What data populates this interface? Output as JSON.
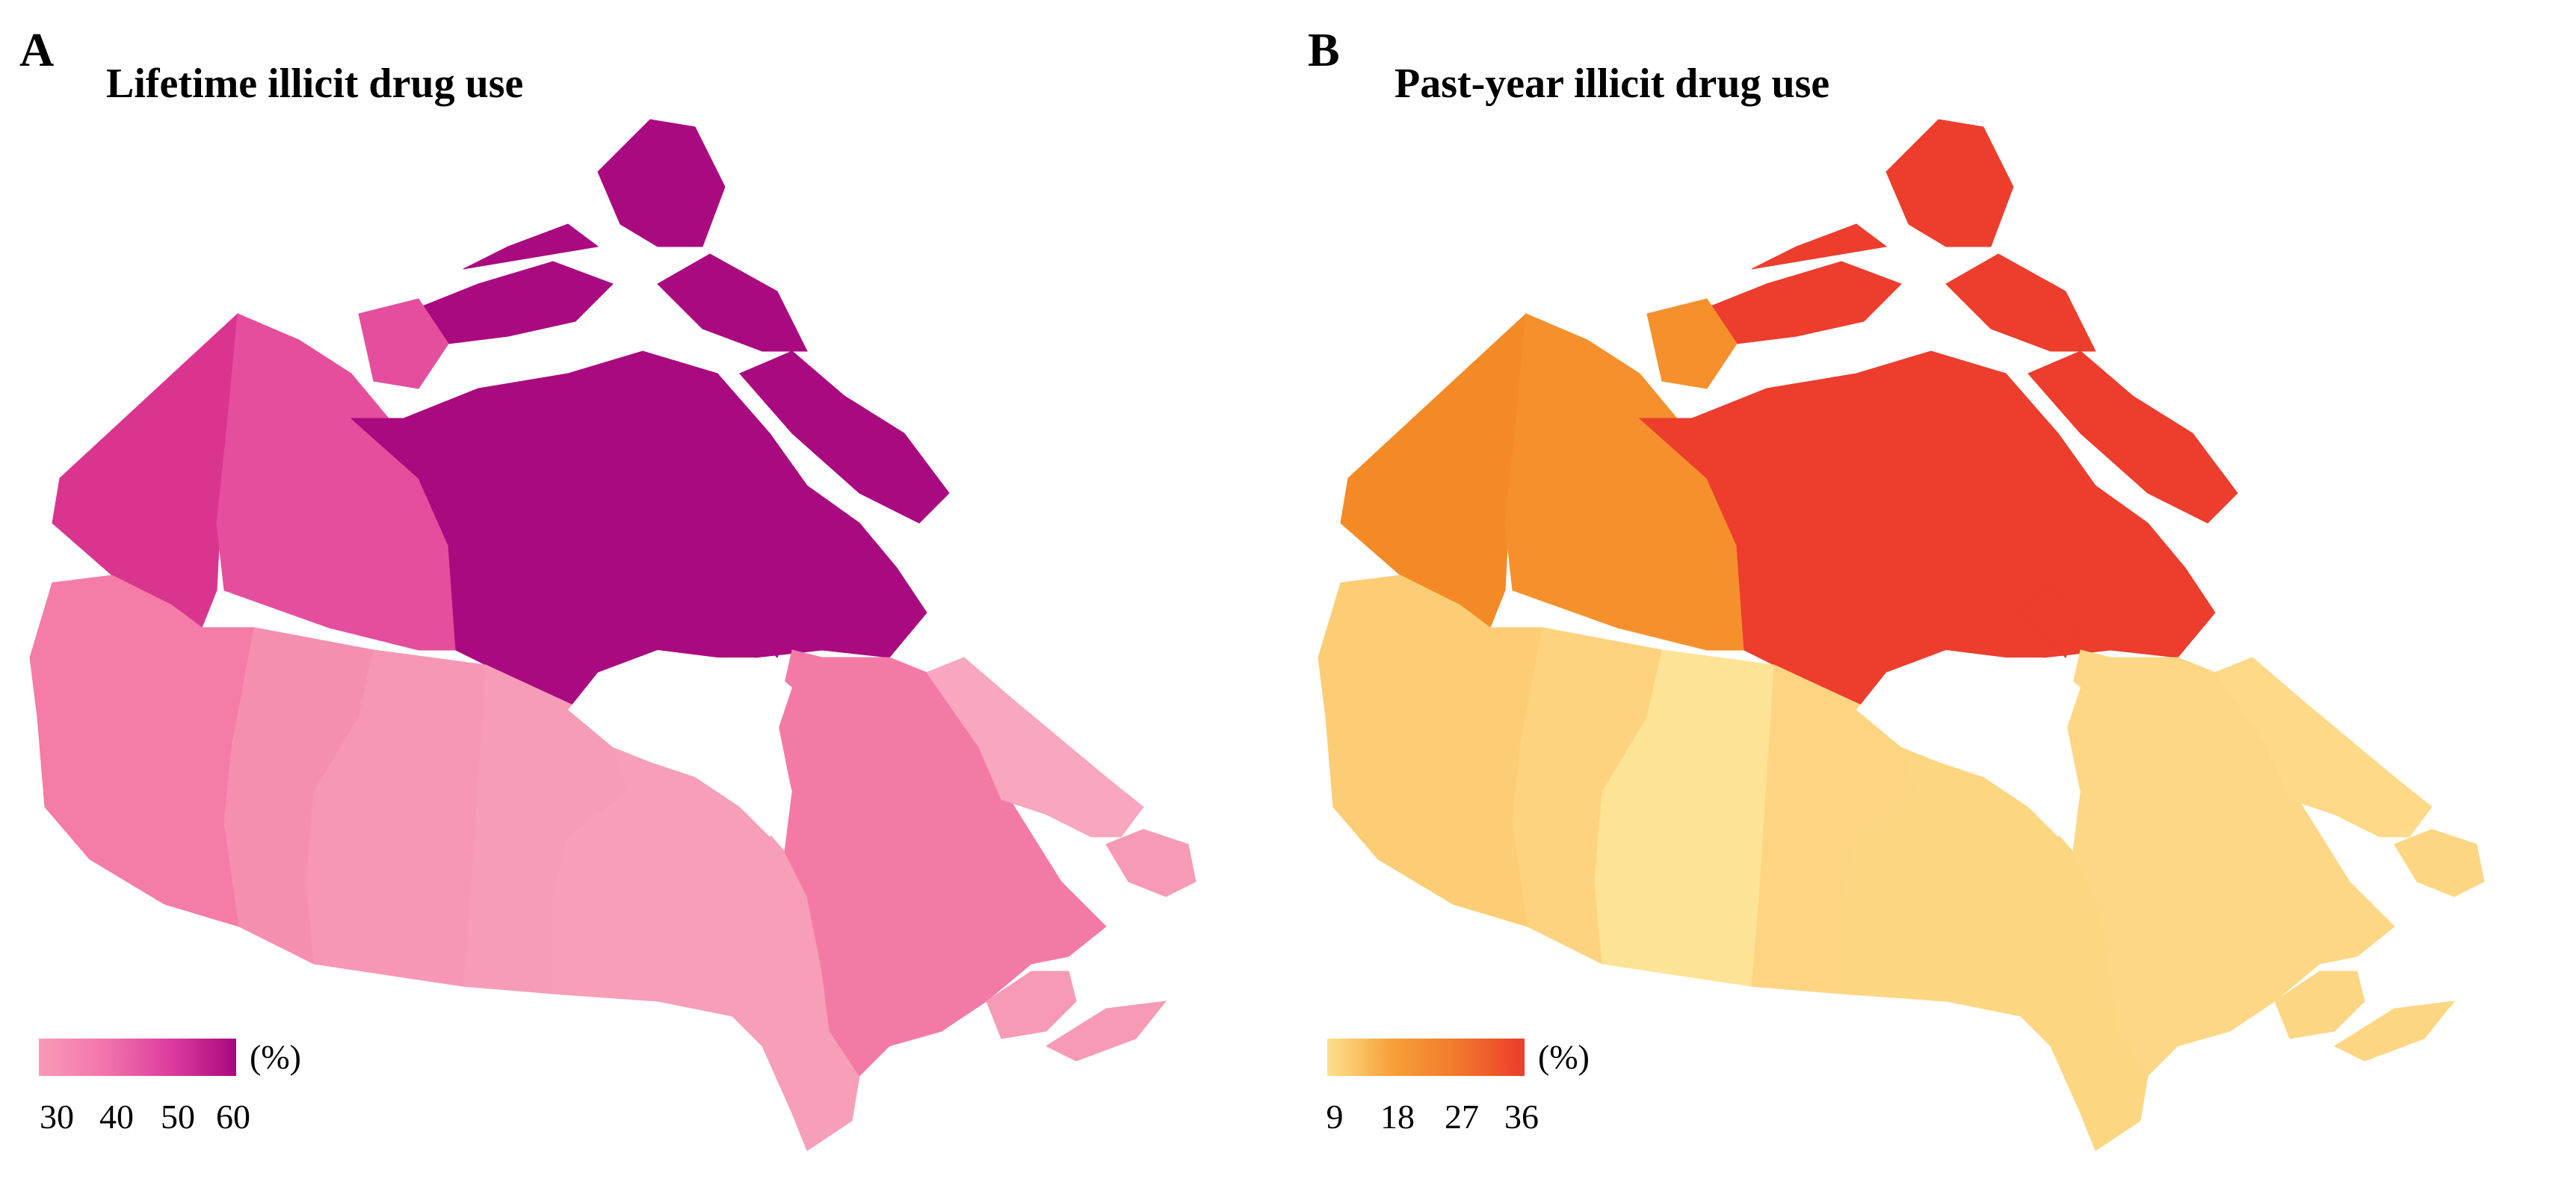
{
  "panels": [
    {
      "letter": "A",
      "title": "Lifetime illicit drug use",
      "legend": {
        "unit": "(%)",
        "ticks": [
          "30",
          "40",
          "50",
          "60"
        ],
        "colors": [
          "#f99ab6",
          "#f275ad",
          "#dd3e9f",
          "#a8087f"
        ]
      },
      "regions": {
        "yukon": "#d9358f",
        "northwest-territories": "#e54e9c",
        "nunavut": "#aa0a80",
        "british-columbia": "#f47ca6",
        "alberta": "#f58fb0",
        "saskatchewan": "#f797b5",
        "manitoba": "#f79cb7",
        "ontario": "#f79eb9",
        "quebec": "#f47aa6",
        "labrador": "#f9a6bf",
        "atlantic": "#f69ab6"
      }
    },
    {
      "letter": "B",
      "title": "Past-year illicit drug use",
      "legend": {
        "unit": "(%)",
        "ticks": [
          "9",
          "18",
          "27",
          "36"
        ],
        "colors": [
          "#fde08f",
          "#f7a038",
          "#f1782c",
          "#ec3c2c"
        ]
      },
      "regions": {
        "yukon": "#f38a26",
        "northwest-territories": "#f6902c",
        "nunavut": "#ec3d2d",
        "british-columbia": "#fccd75",
        "alberta": "#fdd37f",
        "saskatchewan": "#fde395",
        "manitoba": "#fdd582",
        "ontario": "#fdd682",
        "quebec": "#fdd785",
        "labrador": "#fdd988",
        "atlantic": "#fdd683"
      }
    }
  ]
}
